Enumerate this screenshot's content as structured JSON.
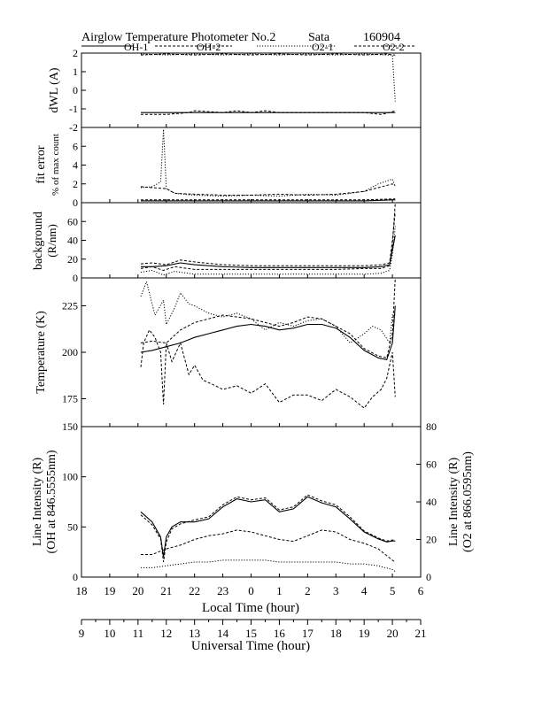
{
  "header": {
    "title": "Airglow Temperature Photometer No.2",
    "site": "Sata",
    "date": "160904"
  },
  "legend": {
    "items": [
      {
        "label": "OH-1",
        "style": "solid"
      },
      {
        "label": "OH-2",
        "style": "dash"
      },
      {
        "label": "O2-1",
        "style": "dot"
      },
      {
        "label": "O2-2",
        "style": "dash"
      }
    ]
  },
  "x_axes": {
    "local": {
      "label": "Local Time (hour)",
      "ticks": [
        "18",
        "19",
        "20",
        "21",
        "22",
        "23",
        "0",
        "1",
        "2",
        "3",
        "4",
        "5",
        "6"
      ]
    },
    "universal": {
      "label": "Universal Time (hour)",
      "ticks": [
        "9",
        "10",
        "11",
        "12",
        "13",
        "14",
        "15",
        "16",
        "17",
        "18",
        "19",
        "20",
        "21"
      ]
    }
  },
  "chart_data": [
    {
      "type": "line",
      "panel": "dwl",
      "ylabel": "dWL (A)",
      "ylim": [
        -2,
        2
      ],
      "yticks": [
        "2",
        "1",
        "0",
        "-1",
        "-2"
      ],
      "x_unit": "Universal Time (hour)",
      "series": [
        {
          "name": "OH-1",
          "style": "solid",
          "x": [
            11.1,
            12.0,
            12.5,
            13.0,
            14.0,
            14.5,
            15.0,
            15.5,
            16.0,
            17.0,
            18.0,
            19.0,
            19.6,
            19.9,
            20.1
          ],
          "y": [
            -1.2,
            -1.2,
            -1.2,
            -1.2,
            -1.2,
            -1.2,
            -1.2,
            -1.2,
            -1.2,
            -1.2,
            -1.2,
            -1.2,
            -1.2,
            -1.2,
            -1.2
          ]
        },
        {
          "name": "OH-2",
          "style": "dash",
          "x": [
            11.1,
            12.0,
            12.8,
            13.0,
            14.0,
            14.5,
            15.0,
            15.5,
            16.0,
            17.0,
            18.0,
            19.0,
            19.6,
            19.9,
            20.1
          ],
          "y": [
            -1.3,
            -1.3,
            -1.2,
            -1.1,
            -1.2,
            -1.1,
            -1.2,
            -1.1,
            -1.2,
            -1.2,
            -1.2,
            -1.2,
            -1.3,
            -1.2,
            -1.1
          ]
        },
        {
          "name": "O2-1",
          "style": "dot",
          "x": [
            11.1,
            12.0,
            13.0,
            14.0,
            15.0,
            16.0,
            17.0,
            18.0,
            19.0,
            19.8,
            20.0,
            20.1
          ],
          "y": [
            1.95,
            1.9,
            1.95,
            1.9,
            1.95,
            1.9,
            1.95,
            1.9,
            1.95,
            1.9,
            1.9,
            -0.6
          ]
        },
        {
          "name": "O2-2",
          "style": "dash",
          "x": [
            11.1,
            12.0,
            13.0,
            14.0,
            15.0,
            16.0,
            17.0,
            18.0,
            19.0,
            19.8,
            20.0,
            20.1
          ],
          "y": [
            1.9,
            1.95,
            1.9,
            1.95,
            1.9,
            1.95,
            1.9,
            1.95,
            1.9,
            1.95,
            1.9,
            1.9
          ]
        }
      ]
    },
    {
      "type": "line",
      "panel": "fit_error",
      "ylabel": "fit error",
      "ylabel2": "% of max count",
      "ylim": [
        0,
        8
      ],
      "yticks": [
        "6",
        "4",
        "2",
        "0"
      ],
      "x_unit": "Universal Time (hour)",
      "series": [
        {
          "name": "OH-1",
          "style": "solid",
          "x": [
            11.1,
            12.0,
            13.0,
            14.0,
            15.0,
            16.0,
            17.0,
            18.0,
            19.0,
            20.0,
            20.1
          ],
          "y": [
            0.2,
            0.2,
            0.2,
            0.2,
            0.2,
            0.2,
            0.2,
            0.2,
            0.2,
            0.3,
            0.3
          ]
        },
        {
          "name": "OH-2",
          "style": "dash",
          "x": [
            11.1,
            12.0,
            13.0,
            14.0,
            15.0,
            16.0,
            17.0,
            18.0,
            19.0,
            20.0,
            20.1
          ],
          "y": [
            0.3,
            0.3,
            0.3,
            0.3,
            0.3,
            0.3,
            0.3,
            0.3,
            0.3,
            0.4,
            0.4
          ]
        },
        {
          "name": "O2-1",
          "style": "dot",
          "x": [
            11.1,
            11.5,
            11.8,
            11.9,
            12.0,
            12.3,
            13.0,
            14.0,
            15.0,
            16.0,
            17.0,
            18.0,
            19.0,
            19.5,
            20.0,
            20.1
          ],
          "y": [
            1.6,
            1.7,
            2.2,
            7.8,
            1.5,
            1.0,
            0.8,
            0.7,
            0.8,
            0.7,
            0.9,
            0.8,
            1.2,
            2.0,
            2.5,
            1.7
          ]
        },
        {
          "name": "O2-2",
          "style": "dash",
          "x": [
            11.1,
            11.5,
            12.0,
            12.3,
            13.0,
            14.0,
            15.0,
            16.0,
            17.0,
            18.0,
            19.0,
            19.5,
            20.0,
            20.1
          ],
          "y": [
            1.7,
            1.6,
            1.5,
            1.0,
            0.9,
            0.8,
            0.8,
            0.9,
            0.8,
            0.9,
            1.2,
            1.6,
            2.0,
            1.8
          ]
        }
      ]
    },
    {
      "type": "line",
      "panel": "background",
      "ylabel": "background",
      "ylabel2": "(R/nm)",
      "ylim": [
        0,
        80
      ],
      "yticks": [
        "60",
        "40",
        "20",
        "0"
      ],
      "x_unit": "Universal Time (hour)",
      "series": [
        {
          "name": "OH-1",
          "style": "solid",
          "x": [
            11.1,
            11.5,
            12.0,
            12.5,
            13.0,
            14.0,
            15.0,
            16.0,
            17.0,
            18.0,
            19.0,
            19.6,
            19.9,
            20.0,
            20.1
          ],
          "y": [
            12,
            12,
            13,
            16,
            14,
            12,
            11,
            11,
            11,
            11,
            11,
            12,
            14,
            30,
            45
          ]
        },
        {
          "name": "OH-2",
          "style": "dash",
          "x": [
            11.1,
            11.5,
            12.0,
            12.5,
            13.0,
            14.0,
            15.0,
            16.0,
            17.0,
            18.0,
            19.0,
            19.6,
            19.9,
            20.0,
            20.1
          ],
          "y": [
            15,
            16,
            14,
            19,
            17,
            14,
            13,
            13,
            13,
            13,
            13,
            14,
            16,
            40,
            70
          ]
        },
        {
          "name": "O2-1",
          "style": "dot",
          "x": [
            11.1,
            11.5,
            11.9,
            12.3,
            13.0,
            14.0,
            15.0,
            16.0,
            17.0,
            18.0,
            19.0,
            19.6,
            19.9,
            20.0,
            20.1
          ],
          "y": [
            6,
            8,
            3,
            7,
            4,
            4,
            4,
            4,
            4,
            4,
            4,
            5,
            8,
            25,
            55
          ]
        },
        {
          "name": "O2-2",
          "style": "dash",
          "x": [
            11.1,
            11.5,
            11.9,
            12.3,
            13.0,
            14.0,
            15.0,
            16.0,
            17.0,
            18.0,
            19.0,
            19.6,
            19.9,
            20.0,
            20.1
          ],
          "y": [
            10,
            12,
            8,
            12,
            9,
            9,
            9,
            9,
            9,
            9,
            10,
            10,
            13,
            35,
            80
          ]
        }
      ]
    },
    {
      "type": "line",
      "panel": "temperature",
      "ylabel": "Temperature (K)",
      "ylim": [
        160,
        240
      ],
      "yticks": [
        "225",
        "200",
        "175"
      ],
      "x_unit": "Universal Time (hour)",
      "series": [
        {
          "name": "OH-1",
          "style": "solid",
          "x": [
            11.1,
            11.5,
            12.0,
            12.5,
            13.0,
            13.5,
            14.0,
            14.5,
            15.0,
            15.5,
            16.0,
            16.5,
            17.0,
            17.5,
            18.0,
            18.5,
            19.0,
            19.5,
            19.8,
            20.0,
            20.1
          ],
          "y": [
            200,
            201,
            203,
            205,
            208,
            210,
            212,
            214,
            215,
            214,
            212,
            213,
            215,
            215,
            213,
            208,
            201,
            197,
            196,
            205,
            225
          ]
        },
        {
          "name": "OH-2",
          "style": "dash",
          "x": [
            11.1,
            11.5,
            12.0,
            12.5,
            13.0,
            13.5,
            14.0,
            14.5,
            15.0,
            15.5,
            16.0,
            16.5,
            17.0,
            17.5,
            18.0,
            18.5,
            19.0,
            19.5,
            19.8,
            20.0,
            20.1
          ],
          "y": [
            205,
            206,
            205,
            212,
            216,
            218,
            220,
            219,
            218,
            216,
            214,
            216,
            219,
            218,
            214,
            210,
            202,
            198,
            197,
            210,
            240
          ]
        },
        {
          "name": "O2-1",
          "style": "dot",
          "x": [
            11.1,
            11.3,
            11.6,
            11.9,
            12.0,
            12.3,
            12.5,
            12.8,
            13.0,
            13.5,
            14.0,
            14.5,
            15.0,
            15.5,
            16.0,
            16.5,
            17.0,
            17.5,
            18.0,
            18.5,
            19.0,
            19.3,
            19.6,
            19.9,
            20.0,
            20.1
          ],
          "y": [
            230,
            238,
            220,
            228,
            215,
            224,
            232,
            226,
            225,
            221,
            219,
            221,
            218,
            212,
            216,
            214,
            217,
            218,
            214,
            205,
            210,
            214,
            212,
            205,
            220,
            220
          ]
        },
        {
          "name": "O2-2",
          "style": "dash",
          "x": [
            11.1,
            11.2,
            11.4,
            11.6,
            11.8,
            11.9,
            12.0,
            12.2,
            12.5,
            12.8,
            13.0,
            13.3,
            13.6,
            14.0,
            14.5,
            15.0,
            15.5,
            16.0,
            16.5,
            17.0,
            17.5,
            18.0,
            18.5,
            19.0,
            19.3,
            19.6,
            19.8,
            20.0,
            20.1
          ],
          "y": [
            192,
            205,
            212,
            208,
            200,
            172,
            205,
            195,
            205,
            188,
            193,
            185,
            183,
            180,
            182,
            178,
            183,
            173,
            177,
            177,
            174,
            180,
            176,
            170,
            176,
            180,
            186,
            200,
            176
          ]
        }
      ]
    },
    {
      "type": "line",
      "panel": "line_intensity",
      "ylabel": "Line Intensity (R)",
      "ylabel2": "(OH at 846.5555nm)",
      "ylim": [
        0,
        150
      ],
      "yticks": [
        "150",
        "100",
        "50",
        "0"
      ],
      "y2label": "Line Intensity (R)",
      "y2label2": "(O2 at 866.0595nm)",
      "y2lim": [
        0,
        80
      ],
      "y2ticks": [
        "80",
        "60",
        "40",
        "20",
        "0"
      ],
      "x_unit": "Universal Time (hour)",
      "series": [
        {
          "name": "OH-1",
          "style": "solid",
          "axis": "left",
          "x": [
            11.1,
            11.5,
            11.8,
            11.9,
            12.0,
            12.2,
            12.5,
            13.0,
            13.5,
            14.0,
            14.5,
            15.0,
            15.5,
            16.0,
            16.5,
            17.0,
            17.5,
            18.0,
            18.5,
            19.0,
            19.5,
            19.8,
            20.0,
            20.1
          ],
          "y": [
            65,
            55,
            40,
            20,
            40,
            50,
            55,
            55,
            58,
            70,
            78,
            75,
            77,
            65,
            68,
            80,
            74,
            70,
            58,
            45,
            38,
            35,
            36,
            36
          ]
        },
        {
          "name": "OH-2",
          "style": "dash",
          "axis": "left",
          "x": [
            11.1,
            11.5,
            11.8,
            11.9,
            12.0,
            12.2,
            12.5,
            13.0,
            13.5,
            14.0,
            14.5,
            15.0,
            15.5,
            16.0,
            16.5,
            17.0,
            17.5,
            18.0,
            18.5,
            19.0,
            19.5,
            19.8,
            20.0,
            20.1
          ],
          "y": [
            62,
            52,
            38,
            15,
            35,
            48,
            53,
            57,
            60,
            72,
            80,
            77,
            79,
            67,
            70,
            82,
            76,
            72,
            60,
            46,
            39,
            36,
            37,
            37
          ]
        },
        {
          "name": "O2-1",
          "style": "dot",
          "axis": "right",
          "x": [
            11.1,
            11.5,
            12.0,
            12.5,
            13.0,
            13.5,
            14.0,
            14.5,
            15.0,
            15.5,
            16.0,
            16.5,
            17.0,
            17.5,
            18.0,
            18.5,
            19.0,
            19.5,
            20.0,
            20.1
          ],
          "y": [
            5,
            5,
            6,
            7,
            8,
            8,
            9,
            9,
            9,
            9,
            8,
            8,
            8,
            8,
            8,
            7,
            7,
            6,
            4,
            3
          ]
        },
        {
          "name": "O2-2",
          "style": "dash",
          "axis": "right",
          "x": [
            11.1,
            11.5,
            12.0,
            12.5,
            13.0,
            13.5,
            14.0,
            14.5,
            15.0,
            15.5,
            16.0,
            16.5,
            17.0,
            17.5,
            18.0,
            18.5,
            19.0,
            19.5,
            20.0,
            20.1
          ],
          "y": [
            12,
            12,
            15,
            17,
            20,
            22,
            23,
            25,
            24,
            22,
            20,
            19,
            22,
            25,
            24,
            20,
            18,
            15,
            9,
            8
          ]
        }
      ]
    }
  ]
}
